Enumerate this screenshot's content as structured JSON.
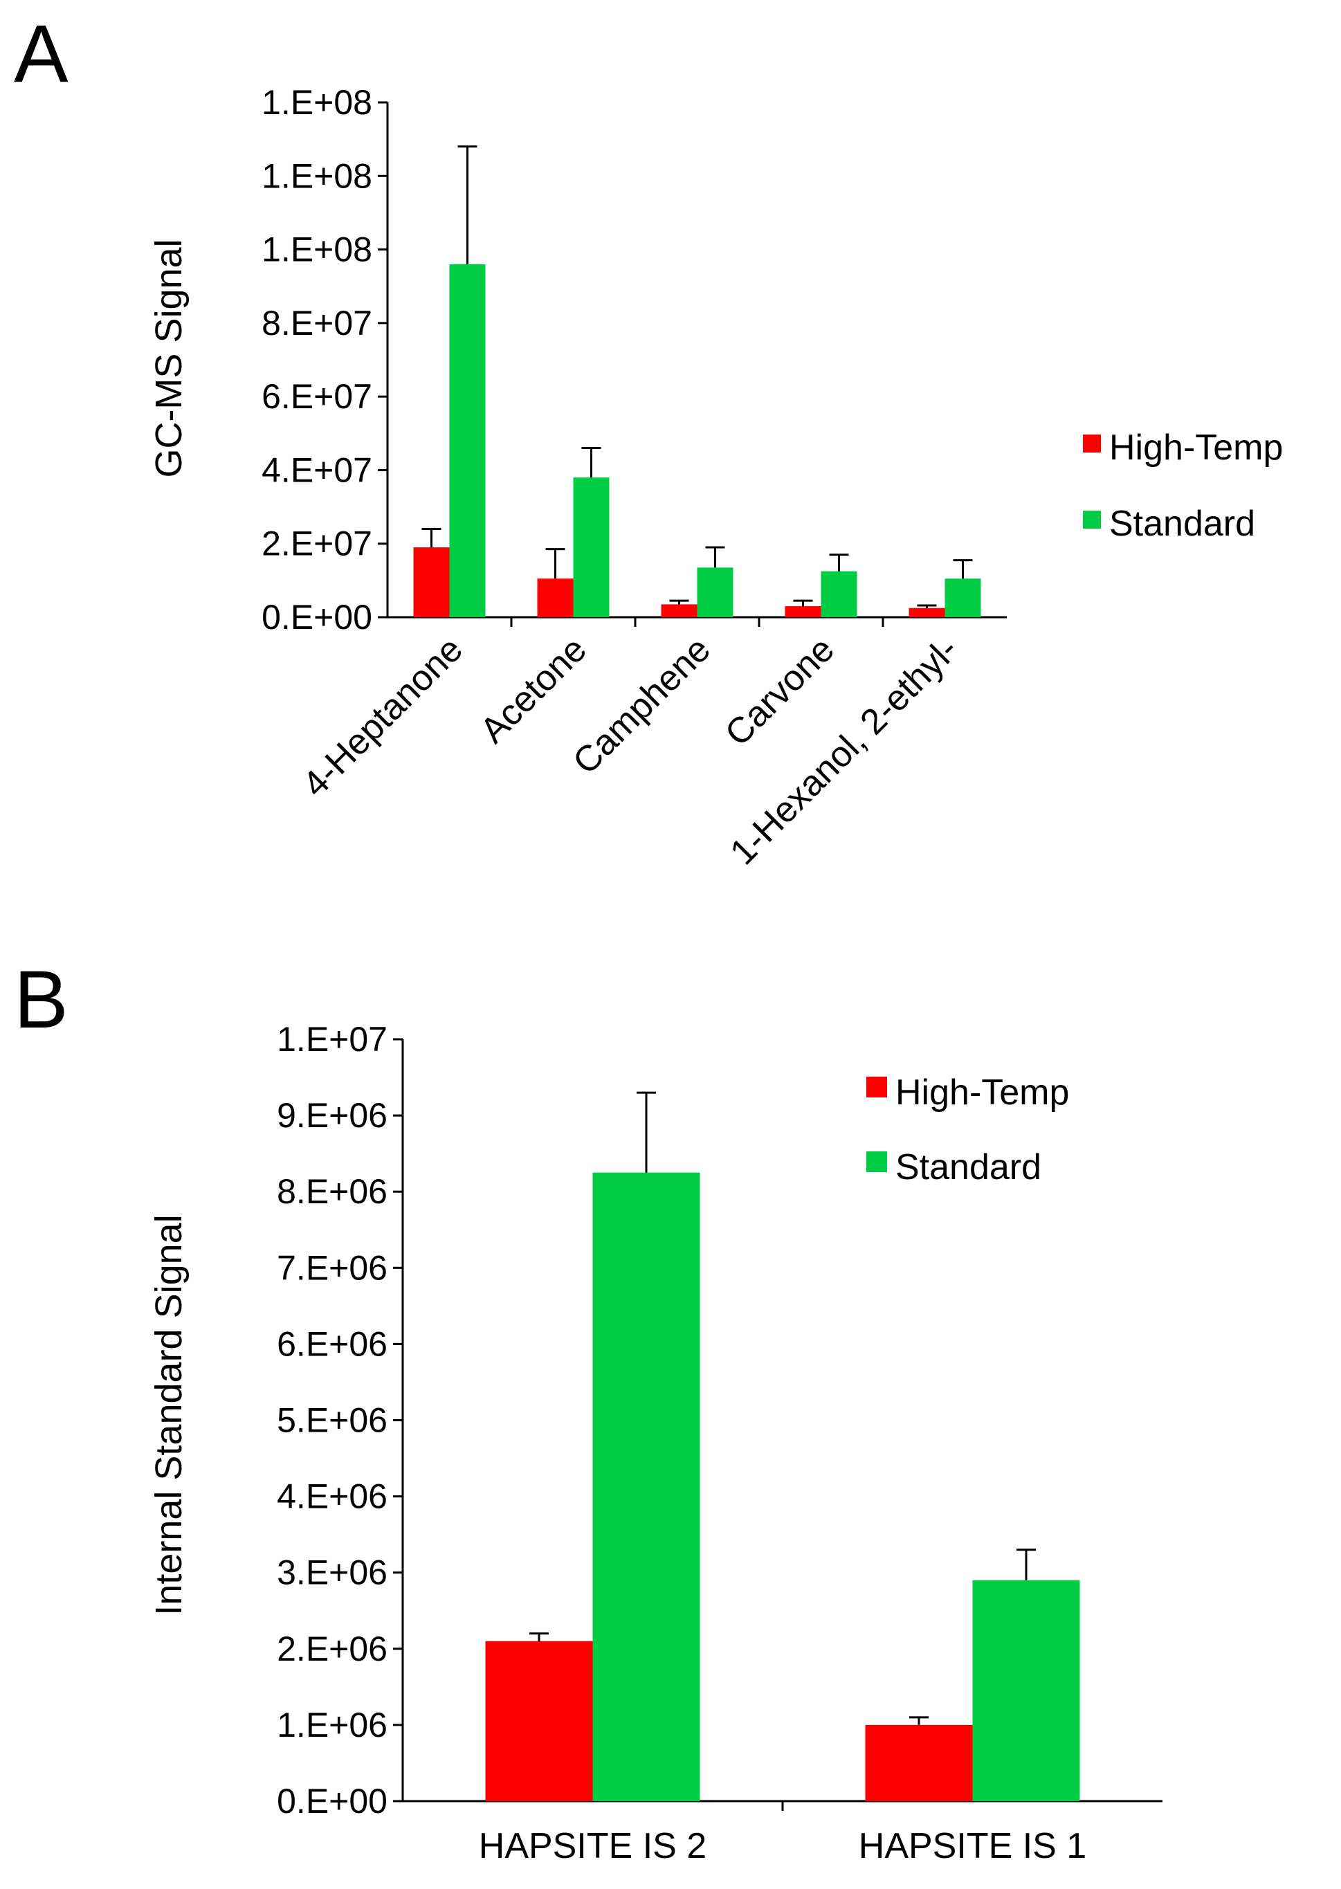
{
  "chart_data": [
    {
      "panel": "A",
      "type": "bar",
      "title": "",
      "xlabel": "",
      "ylabel": "GC-MS Signal",
      "ylim": [
        0,
        140000000
      ],
      "ytick_values": [
        0,
        20000000,
        40000000,
        60000000,
        80000000,
        100000000,
        120000000,
        140000000
      ],
      "ytick_labels": [
        "0.E+00",
        "2.E+07",
        "4.E+07",
        "6.E+07",
        "8.E+07",
        "1.E+08",
        "1.E+08",
        "1.E+08"
      ],
      "categories": [
        "4-Heptanone",
        "Acetone",
        "Camphene",
        "Carvone",
        "1-Hexanol, 2-ethyl-"
      ],
      "series": [
        {
          "name": "High-Temp",
          "color": "#ff0000",
          "values": [
            19000000,
            10500000,
            3500000,
            3000000,
            2500000
          ],
          "errors": [
            5000000,
            8000000,
            1000000,
            1500000,
            700000
          ]
        },
        {
          "name": "Standard",
          "color": "#00cc44",
          "values": [
            96000000,
            38000000,
            13500000,
            12500000,
            10500000
          ],
          "errors": [
            32000000,
            8000000,
            5500000,
            4500000,
            5000000
          ]
        }
      ],
      "legend": "right"
    },
    {
      "panel": "B",
      "type": "bar",
      "title": "",
      "xlabel": "",
      "ylabel": "Internal Standard Signal",
      "ylim": [
        0,
        10000000
      ],
      "ytick_values": [
        0,
        1000000,
        2000000,
        3000000,
        4000000,
        5000000,
        6000000,
        7000000,
        8000000,
        9000000,
        10000000
      ],
      "ytick_labels": [
        "0.E+00",
        "1.E+06",
        "2.E+06",
        "3.E+06",
        "4.E+06",
        "5.E+06",
        "6.E+06",
        "7.E+06",
        "8.E+06",
        "9.E+06",
        "1.E+07"
      ],
      "categories": [
        "HAPSITE IS 2",
        "HAPSITE IS 1"
      ],
      "series": [
        {
          "name": "High-Temp",
          "color": "#ff0000",
          "values": [
            2100000,
            1000000
          ],
          "errors": [
            100000,
            100000
          ]
        },
        {
          "name": "Standard",
          "color": "#00cc44",
          "values": [
            8250000,
            2900000
          ],
          "errors": [
            1050000,
            400000
          ]
        }
      ],
      "legend": "top-right"
    }
  ]
}
